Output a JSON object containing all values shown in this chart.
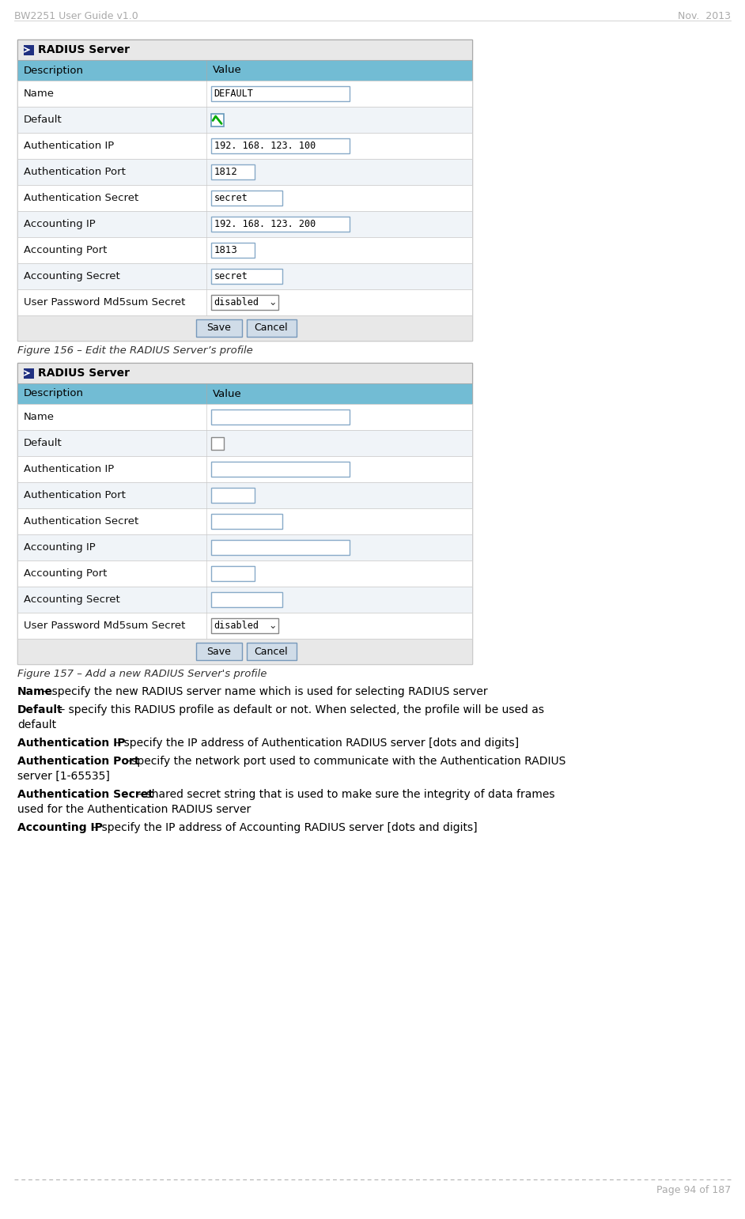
{
  "page_title_left": "BW2251 User Guide v1.0",
  "page_title_right": "Nov.  2013",
  "page_footer": "Page 94 of 187",
  "fig1_caption": "Figure 156 – Edit the RADIUS Server’s profile",
  "fig2_caption": "Figure 157 – Add a new RADIUS Server's profile",
  "table_title": "RADIUS Server",
  "table1_rows": [
    {
      "label": "Name",
      "value": "DEFAULT",
      "type": "input_wide"
    },
    {
      "label": "Default",
      "value": "",
      "type": "checkbox_checked"
    },
    {
      "label": "Authentication IP",
      "value": "192. 168. 123. 100",
      "type": "input_wide"
    },
    {
      "label": "Authentication Port",
      "value": "1812",
      "type": "input_small"
    },
    {
      "label": "Authentication Secret",
      "value": "secret",
      "type": "input_medium"
    },
    {
      "label": "Accounting IP",
      "value": "192. 168. 123. 200",
      "type": "input_wide"
    },
    {
      "label": "Accounting Port",
      "value": "1813",
      "type": "input_small"
    },
    {
      "label": "Accounting Secret",
      "value": "secret",
      "type": "input_medium"
    },
    {
      "label": "User Password Md5sum Secret",
      "value": "disabled",
      "type": "dropdown"
    }
  ],
  "table2_rows": [
    {
      "label": "Name",
      "value": "",
      "type": "input_wide"
    },
    {
      "label": "Default",
      "value": "",
      "type": "checkbox_empty"
    },
    {
      "label": "Authentication IP",
      "value": "",
      "type": "input_wide"
    },
    {
      "label": "Authentication Port",
      "value": "",
      "type": "input_small"
    },
    {
      "label": "Authentication Secret",
      "value": "",
      "type": "input_medium"
    },
    {
      "label": "Accounting IP",
      "value": "",
      "type": "input_wide"
    },
    {
      "label": "Accounting Port",
      "value": "",
      "type": "input_small"
    },
    {
      "label": "Accounting Secret",
      "value": "",
      "type": "input_medium"
    },
    {
      "label": "User Password Md5sum Secret",
      "value": "disabled",
      "type": "dropdown"
    }
  ],
  "description_items": [
    {
      "bold": "Name",
      "rest": " – specify the new RADIUS server name which is used for selecting RADIUS server"
    },
    {
      "bold": "Default",
      "rest": " – specify this RADIUS profile as default or not. When selected, the profile will be used as\ndefault"
    },
    {
      "bold": "Authentication IP",
      "rest": " – specify the IP address of Authentication RADIUS server [dots and digits]"
    },
    {
      "bold": "Authentication Port",
      "rest": " –specify the network port used to communicate with the Authentication RADIUS\nserver [1-65535]"
    },
    {
      "bold": "Authentication Secret",
      "rest": " – shared secret string that is used to make sure the integrity of data frames\nused for the Authentication RADIUS server"
    },
    {
      "bold": "Accounting IP",
      "rest": " – specify the IP address of Accounting RADIUS server [dots and digits]"
    }
  ],
  "bg_color": "#ffffff"
}
